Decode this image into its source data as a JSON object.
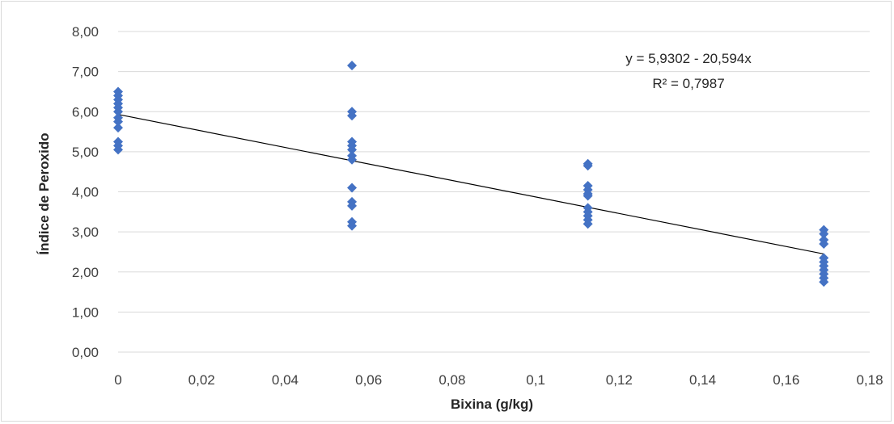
{
  "chart_data": {
    "type": "scatter",
    "xlabel": "Bixina (g/kg)",
    "ylabel": "Índice de Peroxido",
    "xlim": [
      0,
      0.18
    ],
    "ylim": [
      0,
      8
    ],
    "x_ticks": [
      "0",
      "0,02",
      "0,04",
      "0,06",
      "0,08",
      "0,1",
      "0,12",
      "0,14",
      "0,16",
      "0,18"
    ],
    "y_ticks": [
      "0,00",
      "1,00",
      "2,00",
      "3,00",
      "4,00",
      "5,00",
      "6,00",
      "7,00",
      "8,00"
    ],
    "grid": "horizontal",
    "marker_color": "#4472c4",
    "trendline": {
      "type": "linear",
      "intercept": 5.9302,
      "slope": -20.594,
      "x_range": [
        0,
        0.169
      ],
      "equation": "y = 5,9302 - 20,594x",
      "r2": "R² = 0,7987"
    },
    "series": [
      {
        "points": [
          [
            0,
            6.5
          ],
          [
            0,
            6.4
          ],
          [
            0,
            6.3
          ],
          [
            0,
            6.2
          ],
          [
            0,
            6.1
          ],
          [
            0,
            6.0
          ],
          [
            0,
            5.85
          ],
          [
            0,
            5.75
          ],
          [
            0,
            5.6
          ],
          [
            0,
            5.25
          ],
          [
            0,
            5.15
          ],
          [
            0,
            5.05
          ],
          [
            0.056,
            7.15
          ],
          [
            0.056,
            6.0
          ],
          [
            0.056,
            5.9
          ],
          [
            0.056,
            5.25
          ],
          [
            0.056,
            5.15
          ],
          [
            0.056,
            5.05
          ],
          [
            0.056,
            4.9
          ],
          [
            0.056,
            4.8
          ],
          [
            0.056,
            4.1
          ],
          [
            0.056,
            3.75
          ],
          [
            0.056,
            3.65
          ],
          [
            0.056,
            3.25
          ],
          [
            0.056,
            3.15
          ],
          [
            0.1125,
            4.7
          ],
          [
            0.1125,
            4.65
          ],
          [
            0.1125,
            4.15
          ],
          [
            0.1125,
            4.05
          ],
          [
            0.1125,
            3.95
          ],
          [
            0.1125,
            3.9
          ],
          [
            0.1125,
            3.6
          ],
          [
            0.1125,
            3.5
          ],
          [
            0.1125,
            3.4
          ],
          [
            0.1125,
            3.3
          ],
          [
            0.1125,
            3.2
          ],
          [
            0.169,
            3.05
          ],
          [
            0.169,
            2.95
          ],
          [
            0.169,
            2.8
          ],
          [
            0.169,
            2.7
          ],
          [
            0.169,
            2.35
          ],
          [
            0.169,
            2.25
          ],
          [
            0.169,
            2.15
          ],
          [
            0.169,
            2.05
          ],
          [
            0.169,
            1.95
          ],
          [
            0.169,
            1.85
          ],
          [
            0.169,
            1.75
          ]
        ]
      }
    ]
  }
}
